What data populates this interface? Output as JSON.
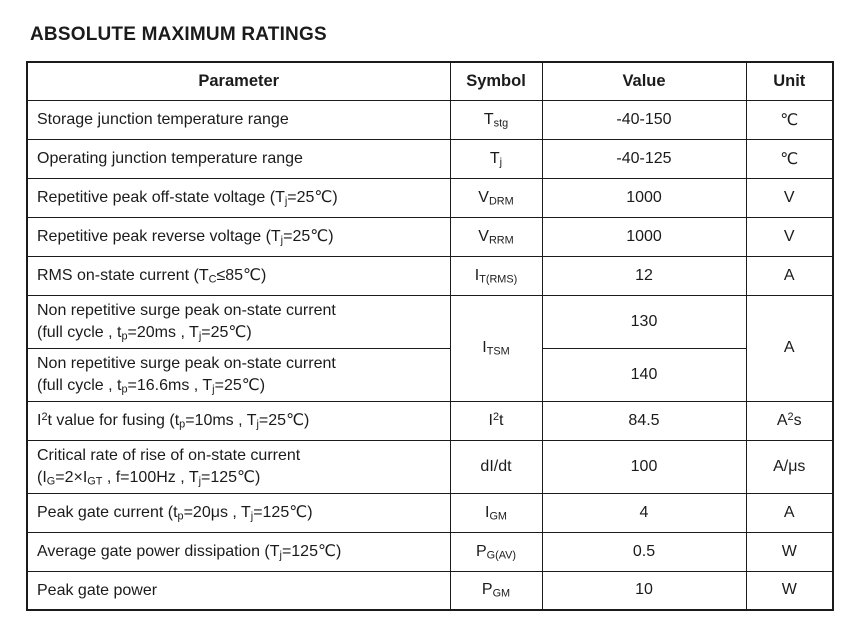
{
  "page": {
    "title": "ABSOLUTE MAXIMUM RATINGS"
  },
  "colors": {
    "text": "#1b1b1b",
    "border": "#1b1b1b",
    "background": "#ffffff"
  },
  "table": {
    "headers": {
      "parameter": "Parameter",
      "symbol": "Symbol",
      "value": "Value",
      "unit": "Unit"
    },
    "rows": [
      {
        "param": "Storage junction temperature range",
        "symbol": "T~stg~",
        "value": "-40-150",
        "unit": "℃"
      },
      {
        "param": "Operating junction temperature range",
        "symbol": "T~j~",
        "value": "-40-125",
        "unit": "℃"
      },
      {
        "param": "Repetitive peak off-state voltage (T~j~=25℃)",
        "symbol": "V~DRM~",
        "value": "1000",
        "unit": "V"
      },
      {
        "param": "Repetitive peak reverse voltage (T~j~=25℃)",
        "symbol": "V~RRM~",
        "value": "1000",
        "unit": "V"
      },
      {
        "param": "RMS on-state current (T~C~≤85℃)",
        "symbol": "I~T(RMS)~",
        "value": "12",
        "unit": "A"
      },
      {
        "param": "Non repetitive surge peak on-state current\n(full cycle , t~p~=20ms , T~j~=25℃)",
        "symbol": "I~TSM~",
        "value": "130",
        "unit": "A"
      },
      {
        "param": "Non repetitive surge peak on-state current\n(full cycle , t~p~=16.6ms , T~j~=25℃)",
        "symbol": "",
        "value": "140",
        "unit": ""
      },
      {
        "param": "I^2^t value for fusing (t~p~=10ms , T~j~=25℃)",
        "symbol": "I^2^t",
        "value": "84.5",
        "unit": "A^2^s"
      },
      {
        "param": "Critical rate of rise of on-state current\n(I~G~=2×I~GT~ , f=100Hz , T~j~=125℃)",
        "symbol": "dI/dt",
        "value": "100",
        "unit": "A/μs"
      },
      {
        "param": "Peak gate current (t~p~=20μs , T~j~=125℃)",
        "symbol": "I~GM~",
        "value": "4",
        "unit": "A"
      },
      {
        "param": "Average gate power dissipation (T~j~=125℃)",
        "symbol": "P~G(AV)~",
        "value": "0.5",
        "unit": "W"
      },
      {
        "param": "Peak gate power",
        "symbol": "P~GM~",
        "value": "10",
        "unit": "W"
      }
    ]
  }
}
